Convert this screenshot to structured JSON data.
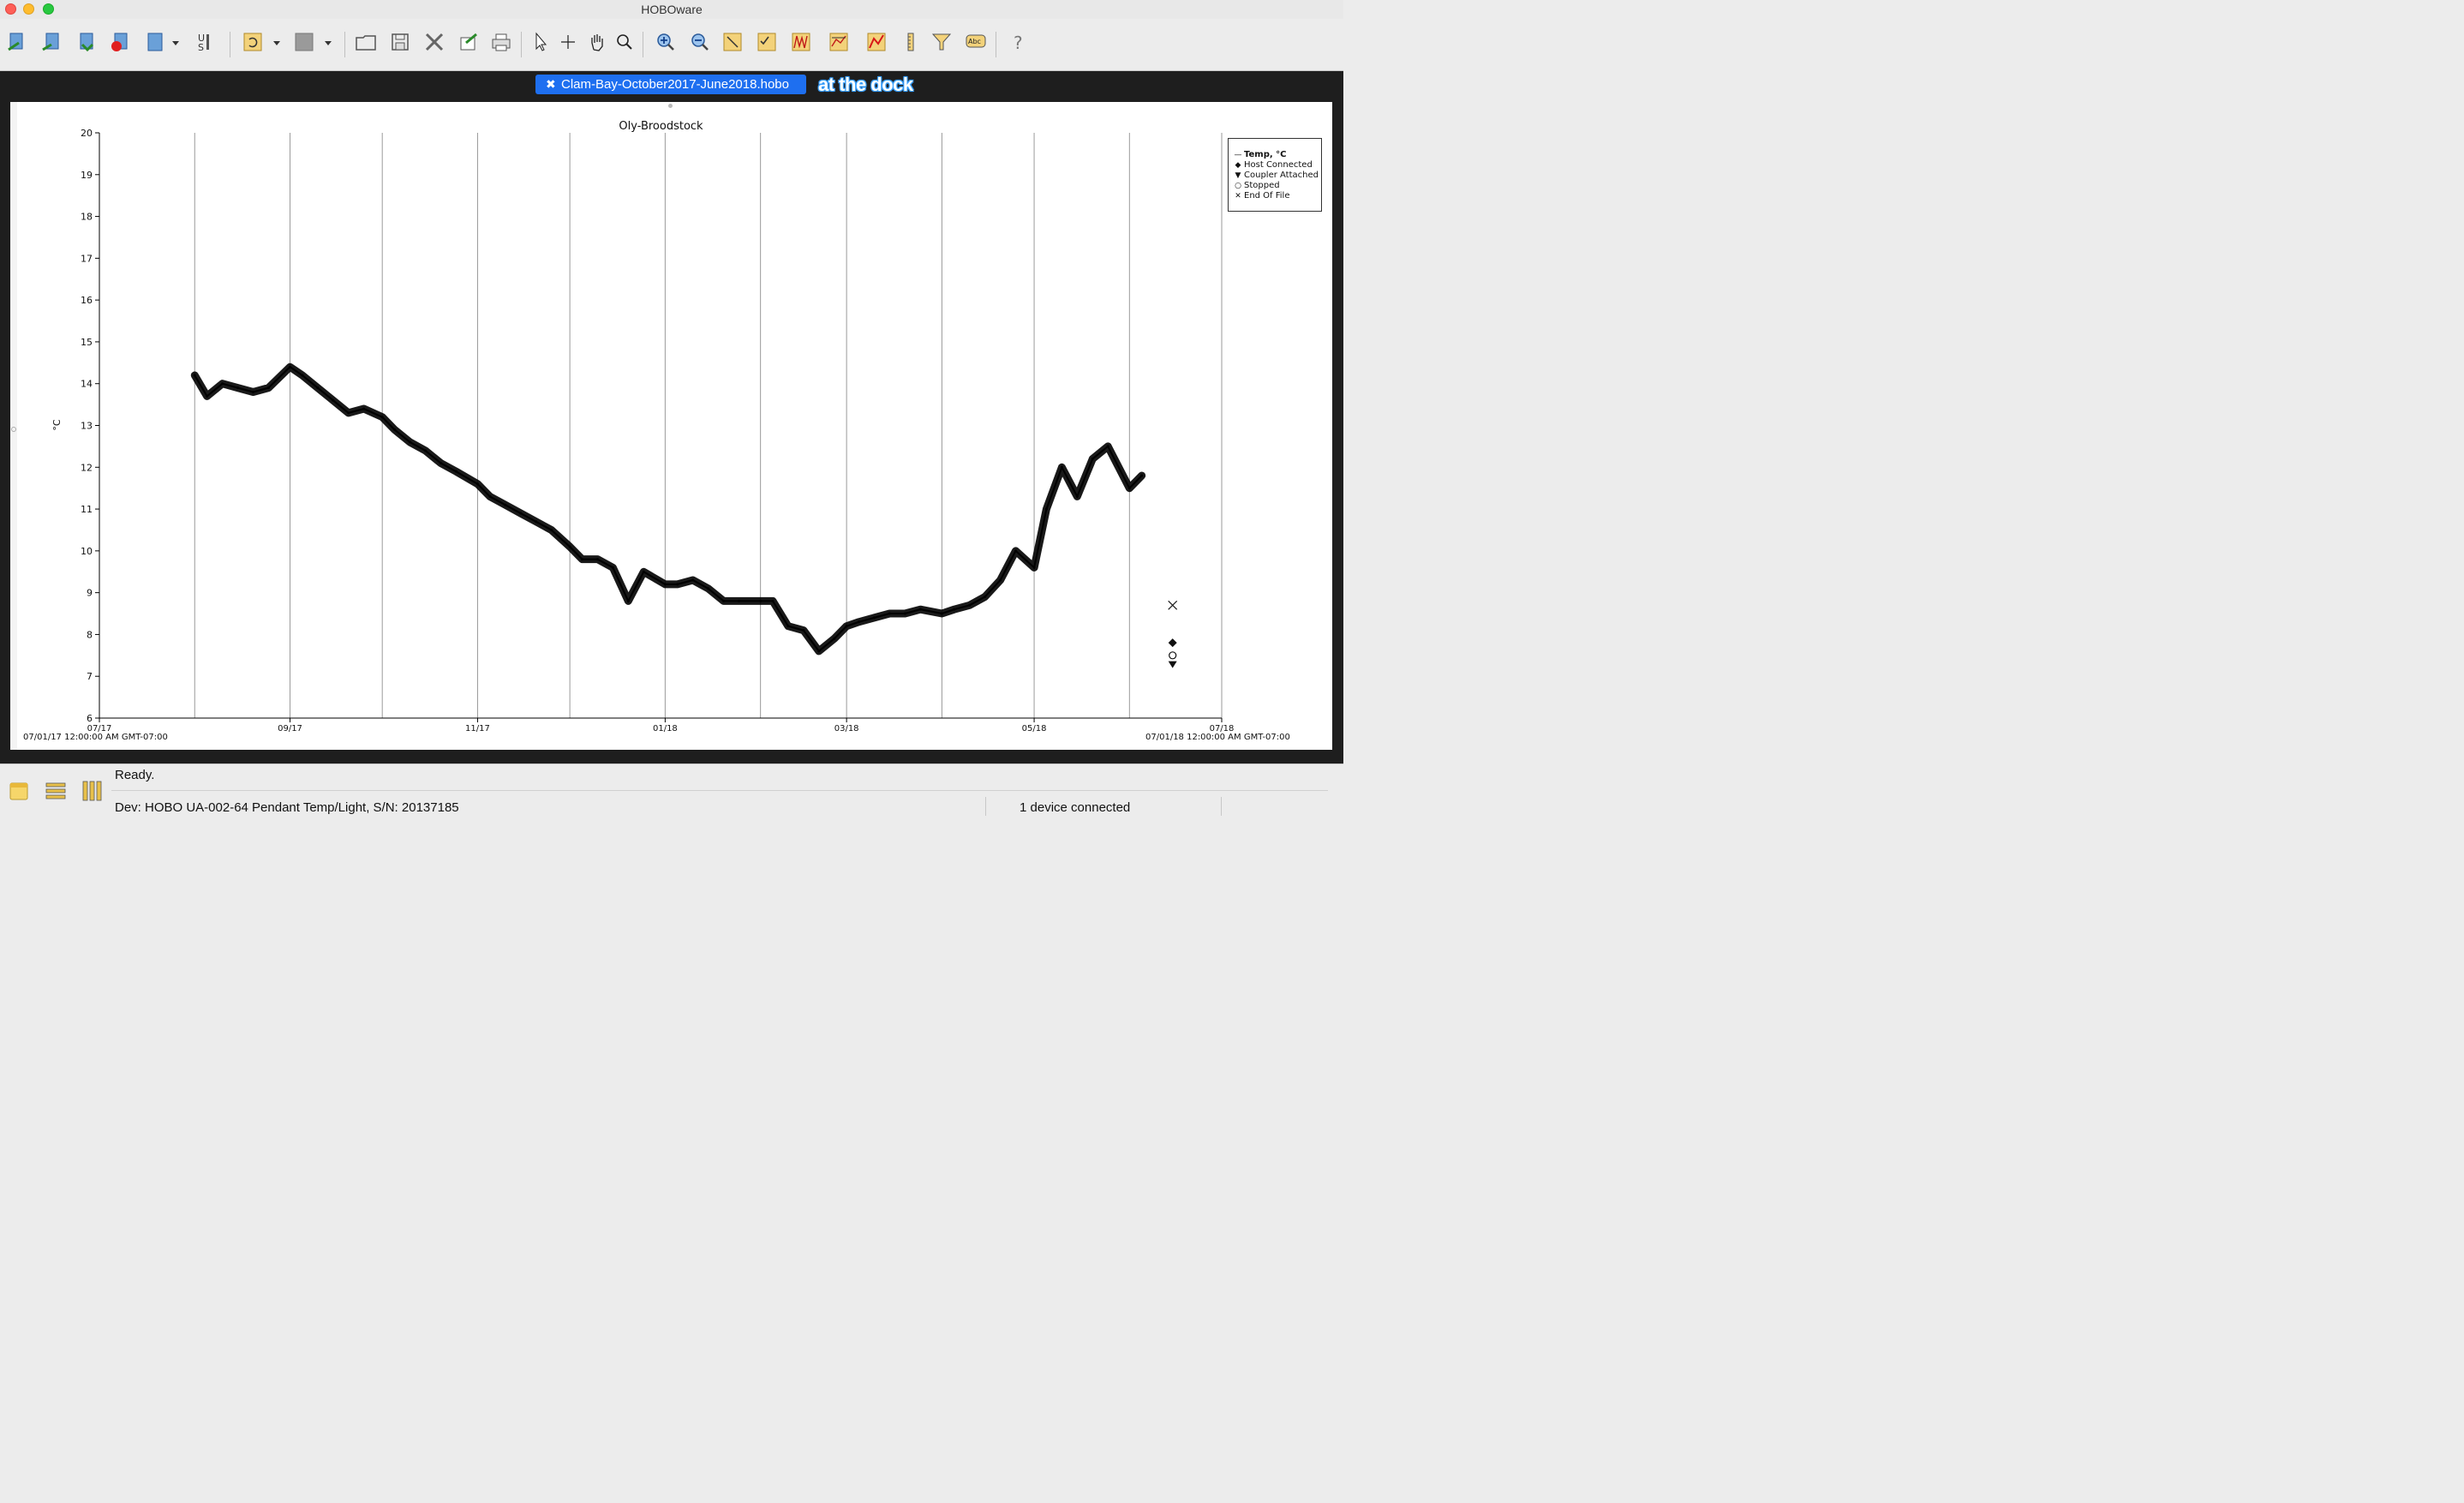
{
  "window": {
    "title": "HOBOware"
  },
  "toolbar": {
    "icons": [
      "readout-icon",
      "launch-icon",
      "download-icon",
      "record-icon",
      "device-icon",
      "units-icon",
      "undo-icon",
      "redo-icon",
      "open-icon",
      "save-icon",
      "close-file-icon",
      "export-icon",
      "print-icon",
      "pointer-icon",
      "crosshair-icon",
      "pan-icon",
      "zoom-icon",
      "zoom-in-icon",
      "zoom-out-icon",
      "zoom-area-icon",
      "checklist-icon",
      "graph-icon",
      "series-icon",
      "plot-red-icon",
      "ruler-icon",
      "filter-icon",
      "text-icon",
      "help-icon"
    ]
  },
  "tab": {
    "label": "Clam-Bay-October2017-June2018.hobo",
    "close": "✖"
  },
  "annotation": {
    "text": "at the dock"
  },
  "plot": {
    "title": "Oly-Broodstock",
    "start_label": "07/01/17 12:00:00 AM GMT-07:00",
    "end_label": "07/01/18 12:00:00 AM GMT-07:00"
  },
  "legend": {
    "items": [
      {
        "symbol": "—",
        "label": "Temp, °C"
      },
      {
        "symbol": "◆",
        "label": "Host Connected"
      },
      {
        "symbol": "▼",
        "label": "Coupler Attached"
      },
      {
        "symbol": "○",
        "label": "Stopped"
      },
      {
        "symbol": "✕",
        "label": "End Of File"
      }
    ]
  },
  "status": {
    "ready": "Ready.",
    "device": "Dev: HOBO UA-002-64 Pendant Temp/Light, S/N: 20137185",
    "connected": "1 device connected"
  },
  "chart_data": {
    "type": "line",
    "title": "Oly-Broodstock",
    "ylabel": "°C",
    "xlabel": "",
    "ylim": [
      6,
      20
    ],
    "yticks": [
      6,
      7,
      8,
      9,
      10,
      11,
      12,
      13,
      14,
      15,
      16,
      17,
      18,
      19,
      20
    ],
    "xticks": [
      "07/17",
      "09/17",
      "11/17",
      "01/18",
      "03/18",
      "05/18",
      "07/18"
    ],
    "x_range": [
      "2017-07-01",
      "2018-07-01"
    ],
    "grid": "vertical month lines",
    "legend_position": "top-right",
    "series": [
      {
        "name": "Temp, °C",
        "color": "#000000",
        "x": [
          "2017-08-01",
          "2017-08-05",
          "2017-08-10",
          "2017-08-15",
          "2017-08-20",
          "2017-08-25",
          "2017-09-01",
          "2017-09-05",
          "2017-09-10",
          "2017-09-15",
          "2017-09-20",
          "2017-09-25",
          "2017-10-01",
          "2017-10-05",
          "2017-10-10",
          "2017-10-15",
          "2017-10-20",
          "2017-10-25",
          "2017-11-01",
          "2017-11-05",
          "2017-11-10",
          "2017-11-15",
          "2017-11-20",
          "2017-11-25",
          "2017-12-01",
          "2017-12-05",
          "2017-12-10",
          "2017-12-15",
          "2017-12-20",
          "2017-12-25",
          "2018-01-01",
          "2018-01-05",
          "2018-01-10",
          "2018-01-15",
          "2018-01-20",
          "2018-01-25",
          "2018-02-01",
          "2018-02-05",
          "2018-02-10",
          "2018-02-15",
          "2018-02-20",
          "2018-02-25",
          "2018-03-01",
          "2018-03-05",
          "2018-03-10",
          "2018-03-15",
          "2018-03-20",
          "2018-03-25",
          "2018-04-01",
          "2018-04-05",
          "2018-04-10",
          "2018-04-15",
          "2018-04-20",
          "2018-04-25",
          "2018-05-01",
          "2018-05-05",
          "2018-05-10",
          "2018-05-15",
          "2018-05-20",
          "2018-05-25",
          "2018-06-01",
          "2018-06-05"
        ],
        "y": [
          14.2,
          13.7,
          14.0,
          13.9,
          13.8,
          13.9,
          14.4,
          14.2,
          13.9,
          13.6,
          13.3,
          13.4,
          13.2,
          12.9,
          12.6,
          12.4,
          12.1,
          11.9,
          11.6,
          11.3,
          11.1,
          10.9,
          10.7,
          10.5,
          10.1,
          9.8,
          9.8,
          9.6,
          8.8,
          9.5,
          9.2,
          9.2,
          9.3,
          9.1,
          8.8,
          8.8,
          8.8,
          8.8,
          8.2,
          8.1,
          7.6,
          7.9,
          8.2,
          8.3,
          8.4,
          8.5,
          8.5,
          8.6,
          8.5,
          8.6,
          8.7,
          8.9,
          9.3,
          10.0,
          9.6,
          11.0,
          12.0,
          11.3,
          12.2,
          12.5,
          11.5,
          11.8
        ]
      }
    ],
    "events": [
      {
        "name": "End Of File",
        "x": "2018-06-05",
        "y": 8.7
      },
      {
        "name": "Host Connected",
        "x": "2018-06-05",
        "y": 7.8
      },
      {
        "name": "Stopped",
        "x": "2018-06-05",
        "y": 7.5
      },
      {
        "name": "Coupler Attached",
        "x": "2018-06-05",
        "y": 7.3
      }
    ]
  }
}
